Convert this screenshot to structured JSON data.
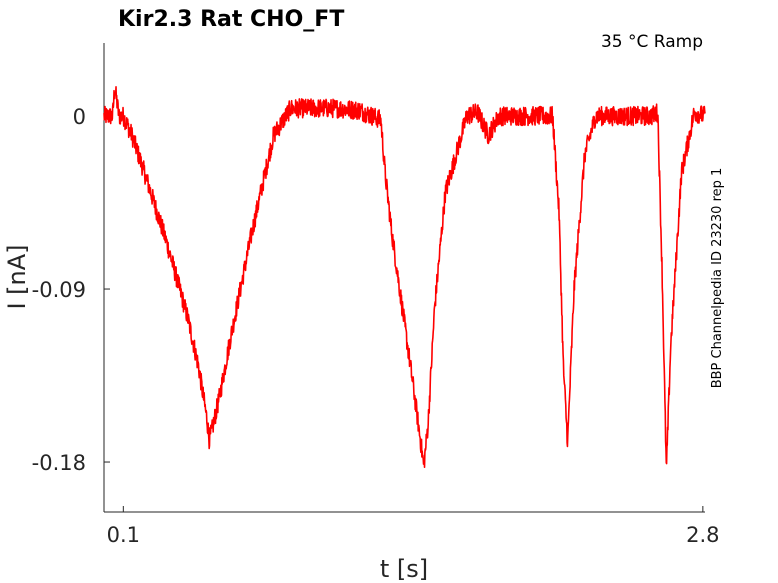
{
  "chart_data": {
    "type": "line",
    "title": "Kir2.3  Rat  CHO_FT",
    "annotation": "35 °C  Ramp",
    "side_label": "BBP Channelpedia ID 23230 rep 1",
    "xlabel": "t [s]",
    "ylabel": "I [nA]",
    "xlim": [
      0.01,
      2.81
    ],
    "ylim": [
      -0.206,
      0.038
    ],
    "x_ticks": [
      0.1,
      2.8
    ],
    "x_tick_labels": [
      "0.1",
      "2.8"
    ],
    "y_ticks": [
      0,
      -0.09,
      -0.18
    ],
    "y_tick_labels": [
      "0",
      "-0.09",
      "-0.18"
    ],
    "grid": false,
    "color": "#ff0000",
    "series": [
      {
        "x": [
          0.01,
          0.05,
          0.06,
          0.08,
          0.1,
          0.14,
          0.2,
          0.3,
          0.4,
          0.45,
          0.49,
          0.5,
          0.51,
          0.55,
          0.6,
          0.7,
          0.8,
          0.88,
          0.9,
          1.0,
          1.1,
          1.2,
          1.3,
          1.32,
          1.35,
          1.4,
          1.45,
          1.48,
          1.5,
          1.52,
          1.55,
          1.6,
          1.7,
          1.75,
          1.8,
          1.85,
          1.9,
          2.0,
          2.07,
          2.1,
          2.13,
          2.15,
          2.17,
          2.2,
          2.25,
          2.3,
          2.4,
          2.5,
          2.56,
          2.59,
          2.61,
          2.63,
          2.65,
          2.7,
          2.76,
          2.81
        ],
        "y": [
          0.0,
          0.0,
          0.015,
          0.0,
          0.0,
          -0.01,
          -0.03,
          -0.065,
          -0.105,
          -0.13,
          -0.158,
          -0.168,
          -0.165,
          -0.145,
          -0.115,
          -0.06,
          -0.01,
          0.004,
          0.004,
          0.004,
          0.004,
          0.003,
          -0.002,
          -0.03,
          -0.06,
          -0.1,
          -0.14,
          -0.165,
          -0.182,
          -0.16,
          -0.1,
          -0.04,
          0.0,
          0.002,
          -0.01,
          0.0,
          0.0,
          0.0,
          0.0,
          0.0,
          -0.05,
          -0.13,
          -0.17,
          -0.09,
          -0.02,
          0.0,
          0.0,
          0.0,
          0.0,
          0.002,
          -0.08,
          -0.185,
          -0.12,
          -0.03,
          0.002,
          0.0
        ]
      }
    ]
  }
}
